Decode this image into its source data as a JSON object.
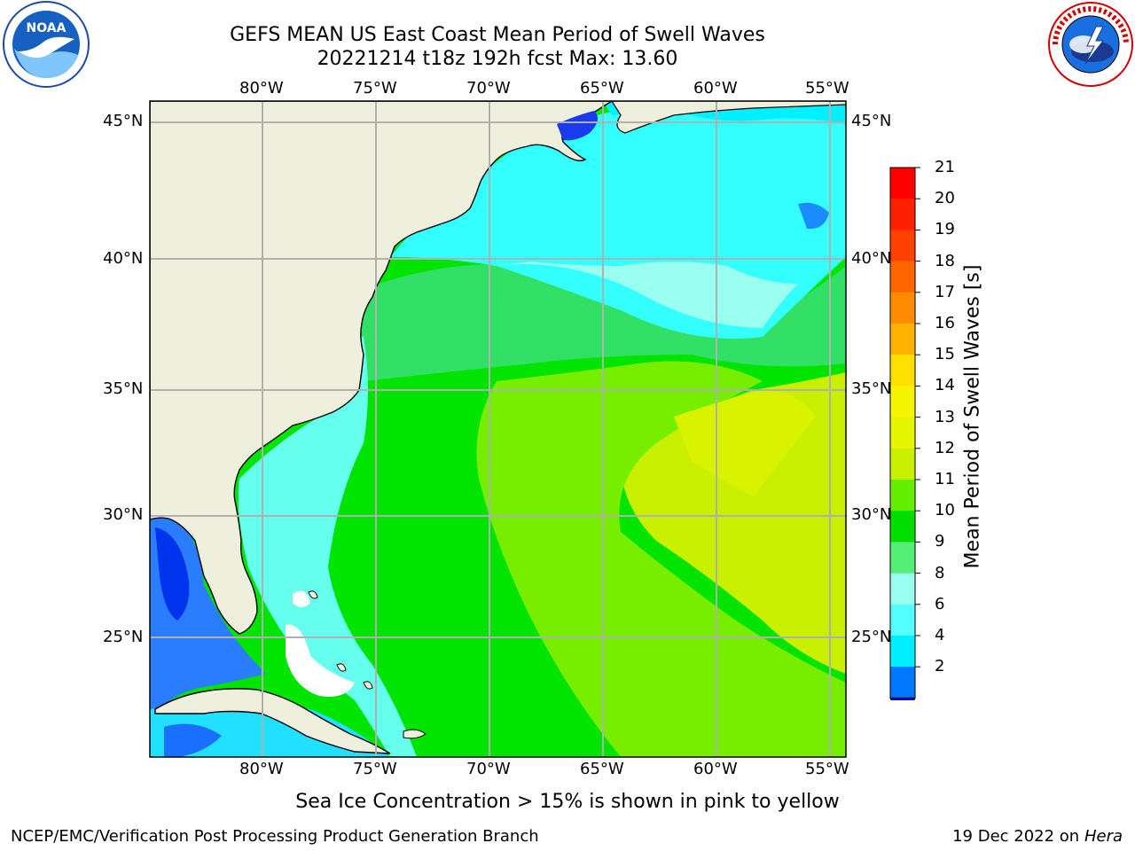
{
  "title": {
    "line1": "GEFS MEAN US East Coast Mean Period of Swell Waves",
    "line2": "20221214 t18z 192h fcst   Max: 13.60"
  },
  "logos": {
    "left": "noaa-logo",
    "right": "national-weather-service-logo",
    "noaa_text": "NOAA",
    "nws_text": "NATIONAL WEATHER SERVICE"
  },
  "map": {
    "lon_labels": [
      "80°W",
      "75°W",
      "70°W",
      "65°W",
      "60°W",
      "55°W"
    ],
    "lat_labels": [
      "45°N",
      "40°N",
      "35°N",
      "30°N",
      "25°N"
    ],
    "lon_range": [
      -85,
      -55
    ],
    "lat_range": [
      20,
      45
    ],
    "max_value": 13.6,
    "colors": {
      "land": "#efefde",
      "grid": "#b0b0b0",
      "coast": "#000000"
    }
  },
  "colorbar": {
    "label": "Mean Period of Swell Waves [s]",
    "ticks": [
      "21",
      "20",
      "19",
      "18",
      "17",
      "16",
      "15",
      "14",
      "13",
      "12",
      "11",
      "10",
      "9",
      "8",
      "6",
      "4",
      "2"
    ],
    "colors_top_to_bottom": [
      "#ff0000",
      "#ff2000",
      "#ff4000",
      "#ff6600",
      "#ff8c00",
      "#ffb300",
      "#ffe000",
      "#f5f500",
      "#e6f500",
      "#c8f000",
      "#66ee00",
      "#00dd00",
      "#55ee77",
      "#99ffee",
      "#55ffff",
      "#00eeff",
      "#0077ff"
    ],
    "under_color": "#0000ee"
  },
  "footer": {
    "note": "Sea Ice Concentration > 15% is shown in pink to yellow",
    "credit_left": "NCEP/EMC/Verification Post Processing Product Generation Branch",
    "credit_date": "19 Dec 2022 on",
    "credit_machine": "Hera"
  }
}
